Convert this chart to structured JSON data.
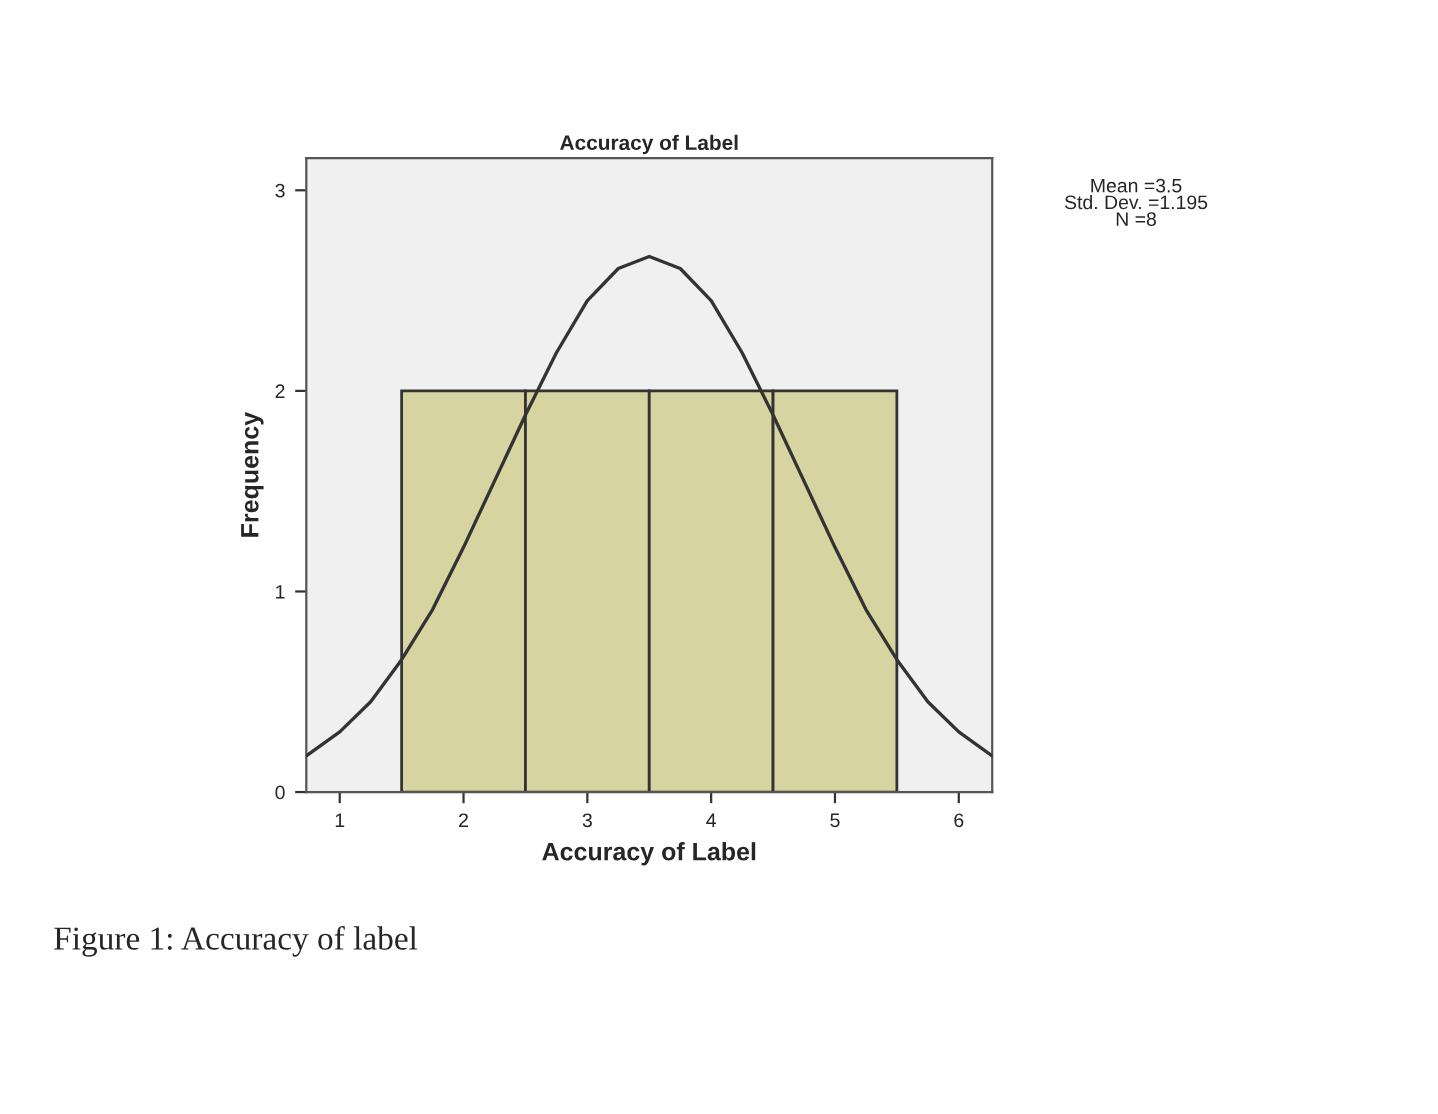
{
  "chart_data": {
    "type": "histogram",
    "title": "Accuracy of Label",
    "xlabel": "Accuracy of Label",
    "ylabel": "Frequency",
    "bins": [
      1.5,
      2.5,
      3.5,
      4.5,
      5.5
    ],
    "values": [
      2,
      2,
      2,
      2
    ],
    "color": "#d6d4a0",
    "series": [
      {
        "type": "line",
        "color": "#333333",
        "x": [
          0.73,
          1.0,
          1.25,
          1.5,
          1.75,
          2.0,
          2.25,
          2.5,
          2.75,
          3.0,
          3.25,
          3.5,
          3.75,
          4.0,
          4.25,
          4.5,
          4.75,
          5.0,
          5.25,
          5.5,
          5.75,
          6.0,
          6.27
        ],
        "values": [
          0.18,
          0.3,
          0.45,
          0.66,
          0.91,
          1.22,
          1.55,
          1.88,
          2.19,
          2.45,
          2.61,
          2.67,
          2.61,
          2.45,
          2.19,
          1.88,
          1.55,
          1.22,
          0.91,
          0.66,
          0.45,
          0.3,
          0.18
        ]
      }
    ],
    "xlim": [
      0.73,
      6.27
    ],
    "xticks": [
      1,
      2,
      3,
      4,
      5,
      6
    ],
    "ylim": [
      0,
      3.16
    ],
    "yticks": [
      0,
      1,
      2,
      3
    ],
    "grid": false,
    "annotations": [
      "Mean =3.5\nStd. Dev. =1.195\nN =8",
      "Figure 1: Accuracy of label"
    ]
  }
}
